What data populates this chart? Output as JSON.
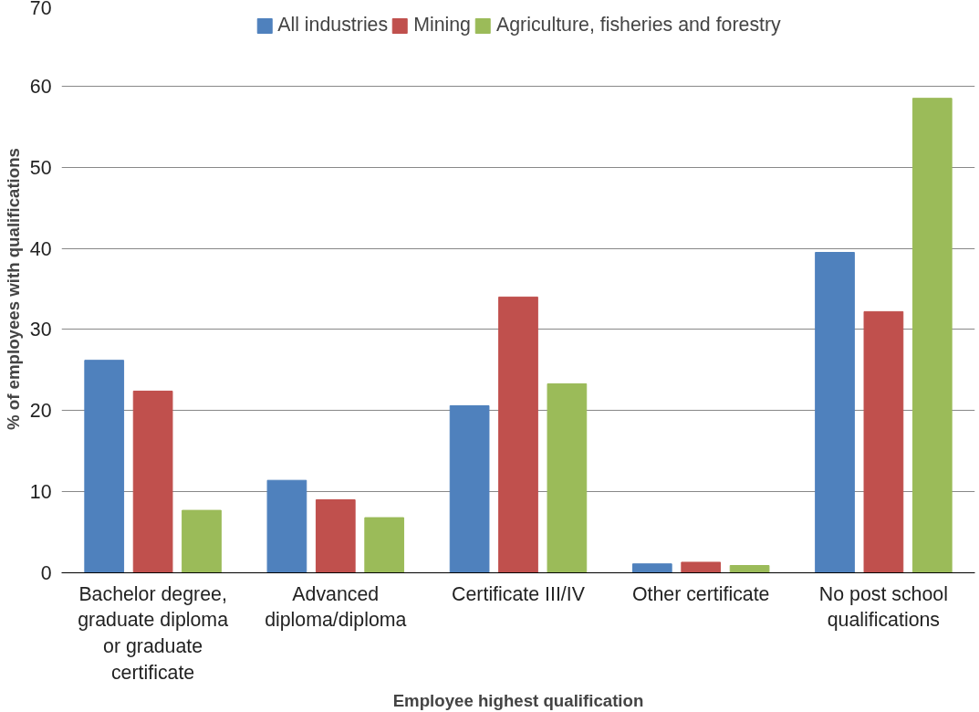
{
  "chart_data": {
    "type": "bar",
    "xlabel": "Employee highest qualification",
    "ylabel": "% of employees with qualifications",
    "categories": [
      "Bachelor degree, graduate diploma or graduate certificate",
      "Advanced diploma/diploma",
      "Certificate III/IV",
      "Other certificate",
      "No post school qualifications"
    ],
    "series": [
      {
        "name": "All industries",
        "color": "#4f81bd",
        "values": [
          26.2,
          11.4,
          20.6,
          1.1,
          39.5
        ]
      },
      {
        "name": "Mining",
        "color": "#c0504d",
        "values": [
          22.4,
          9.0,
          34.0,
          1.3,
          32.2
        ]
      },
      {
        "name": "Agriculture, fisheries and forestry",
        "color": "#9bbb59",
        "values": [
          7.7,
          6.8,
          23.3,
          0.9,
          58.5
        ]
      }
    ],
    "ylim": [
      0,
      70
    ],
    "yticks": [
      0,
      10,
      20,
      30,
      40,
      50,
      60,
      70
    ],
    "grid": "y",
    "legend": "top"
  }
}
